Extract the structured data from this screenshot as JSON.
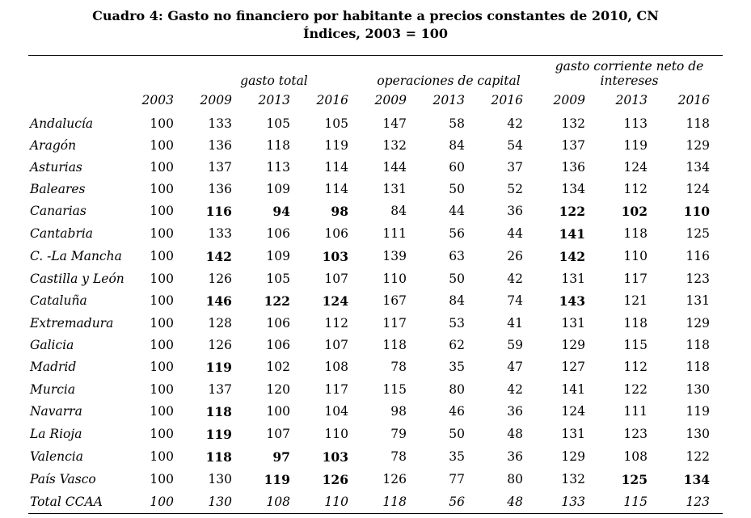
{
  "title": "Cuadro 4: Gasto no financiero por habitante a precios constantes de 2010, CN",
  "subtitle": "Índices, 2003 = 100",
  "table": {
    "group_headers": [
      {
        "label": "",
        "span": 2
      },
      {
        "label": "gasto total",
        "span": 3
      },
      {
        "label": "operaciones de capital",
        "span": 3
      },
      {
        "label": "gasto corriente neto de intereses",
        "span": 3
      }
    ],
    "year_headers": [
      "2003",
      "2009",
      "2013",
      "2016",
      "2009",
      "2013",
      "2016",
      "2009",
      "2013",
      "2016"
    ],
    "rows": [
      {
        "region": "Andalucía",
        "values": [
          100,
          133,
          105,
          105,
          147,
          58,
          42,
          132,
          113,
          118
        ],
        "bold": []
      },
      {
        "region": "Aragón",
        "values": [
          100,
          136,
          118,
          119,
          132,
          84,
          54,
          137,
          119,
          129
        ],
        "bold": []
      },
      {
        "region": "Asturias",
        "values": [
          100,
          137,
          113,
          114,
          144,
          60,
          37,
          136,
          124,
          134
        ],
        "bold": []
      },
      {
        "region": "Baleares",
        "values": [
          100,
          136,
          109,
          114,
          131,
          50,
          52,
          134,
          112,
          124
        ],
        "bold": []
      },
      {
        "region": "Canarias",
        "values": [
          100,
          116,
          94,
          98,
          84,
          44,
          36,
          122,
          102,
          110
        ],
        "bold": [
          1,
          2,
          3,
          7,
          8,
          9
        ]
      },
      {
        "region": "Cantabria",
        "values": [
          100,
          133,
          106,
          106,
          111,
          56,
          44,
          141,
          118,
          125
        ],
        "bold": [
          7
        ]
      },
      {
        "region": "C. -La Mancha",
        "values": [
          100,
          142,
          109,
          103,
          139,
          63,
          26,
          142,
          110,
          116
        ],
        "bold": [
          1,
          3,
          7
        ]
      },
      {
        "region": "Castilla y León",
        "values": [
          100,
          126,
          105,
          107,
          110,
          50,
          42,
          131,
          117,
          123
        ],
        "bold": []
      },
      {
        "region": "Cataluña",
        "values": [
          100,
          146,
          122,
          124,
          167,
          84,
          74,
          143,
          121,
          131
        ],
        "bold": [
          1,
          2,
          3,
          7
        ]
      },
      {
        "region": "Extremadura",
        "values": [
          100,
          128,
          106,
          112,
          117,
          53,
          41,
          131,
          118,
          129
        ],
        "bold": []
      },
      {
        "region": "Galicia",
        "values": [
          100,
          126,
          106,
          107,
          118,
          62,
          59,
          129,
          115,
          118
        ],
        "bold": []
      },
      {
        "region": "Madrid",
        "values": [
          100,
          119,
          102,
          108,
          78,
          35,
          47,
          127,
          112,
          118
        ],
        "bold": [
          1
        ]
      },
      {
        "region": "Murcia",
        "values": [
          100,
          137,
          120,
          117,
          115,
          80,
          42,
          141,
          122,
          130
        ],
        "bold": []
      },
      {
        "region": "Navarra",
        "values": [
          100,
          118,
          100,
          104,
          98,
          46,
          36,
          124,
          111,
          119
        ],
        "bold": [
          1
        ]
      },
      {
        "region": "La Rioja",
        "values": [
          100,
          119,
          107,
          110,
          79,
          50,
          48,
          131,
          123,
          130
        ],
        "bold": [
          1
        ]
      },
      {
        "region": "Valencia",
        "values": [
          100,
          118,
          97,
          103,
          78,
          35,
          36,
          129,
          108,
          122
        ],
        "bold": [
          1,
          2,
          3
        ]
      },
      {
        "region": "País Vasco",
        "values": [
          100,
          130,
          119,
          126,
          126,
          77,
          80,
          132,
          125,
          134
        ],
        "bold": [
          2,
          3,
          8,
          9
        ]
      },
      {
        "region": "Total CCAA",
        "values": [
          100,
          130,
          108,
          110,
          118,
          56,
          48,
          133,
          115,
          123
        ],
        "bold": [],
        "italic": true
      }
    ]
  }
}
